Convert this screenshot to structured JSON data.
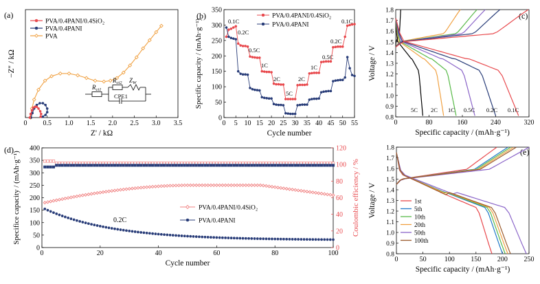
{
  "colors": {
    "red": "#e8484c",
    "navy": "#283c78",
    "orange": "#f0a040",
    "light_red": "#f08080",
    "green": "#57b947",
    "purple": "#8a64c8",
    "brown": "#9a5a2c",
    "teal": "#39a9a0",
    "blue": "#1f78c8",
    "black": "#000000"
  },
  "panel_labels": {
    "a": "(a)",
    "b": "(b)",
    "c": "(c)",
    "d": "(d)",
    "e": "(e)"
  },
  "chart_data": [
    {
      "id": "a",
      "type": "line",
      "xlabel": "Z' / kΩ",
      "ylabel": "−Z'' / kΩ",
      "xlim": [
        0,
        3.5
      ],
      "ylim": [
        0,
        1.2
      ],
      "xticks": [
        "0",
        "0.5",
        "1.0",
        "1.5",
        "2.0",
        "2.5",
        "3.0",
        "3.5"
      ],
      "legend": [
        "PVA/0.4PANI/0.4SiO₂",
        "PVA/0.4PANI",
        "PVA"
      ],
      "circuit": {
        "r1": "R",
        "r1_sub": "ct1",
        "r2": "R",
        "r2_sub": "ct2",
        "zw": "Z",
        "zw_sub": "W",
        "cpe": "CPE1"
      },
      "series": [
        {
          "name": "PVA",
          "x": [
            0.12,
            0.15,
            0.2,
            0.3,
            0.45,
            0.6,
            0.8,
            1.0,
            1.2,
            1.4,
            1.6,
            1.8,
            1.95,
            2.1,
            2.25,
            2.4,
            2.55,
            2.7,
            2.85,
            3.0,
            3.12
          ],
          "y": [
            0.0,
            0.1,
            0.2,
            0.31,
            0.41,
            0.46,
            0.49,
            0.49,
            0.47,
            0.44,
            0.41,
            0.4,
            0.41,
            0.44,
            0.5,
            0.58,
            0.67,
            0.77,
            0.86,
            0.95,
            1.02
          ]
        },
        {
          "name": "PVA/0.4PANI",
          "x": [
            0.13,
            0.16,
            0.2,
            0.26,
            0.33,
            0.4,
            0.46,
            0.5,
            0.5,
            0.46,
            0.4
          ],
          "y": [
            0.0,
            0.05,
            0.1,
            0.14,
            0.16,
            0.16,
            0.14,
            0.1,
            0.06,
            0.03,
            0.01
          ]
        },
        {
          "name": "PVA/0.4PANI/0.4SiO₂",
          "x": [
            0.1,
            0.12,
            0.15,
            0.18,
            0.22,
            0.26,
            0.3,
            0.34,
            0.36,
            0.35
          ],
          "y": [
            0.0,
            0.04,
            0.08,
            0.11,
            0.12,
            0.12,
            0.1,
            0.07,
            0.04,
            0.01
          ]
        }
      ]
    },
    {
      "id": "b",
      "type": "line",
      "xlabel": "Cycle number",
      "ylabel": "Specific capacity / (mAh·g⁻¹)",
      "xlim": [
        0,
        55
      ],
      "ylim": [
        0,
        350
      ],
      "xticks": [
        "0",
        "5",
        "10",
        "15",
        "20",
        "25",
        "30",
        "35",
        "40",
        "45",
        "50",
        "55"
      ],
      "yticks": [
        "0",
        "50",
        "100",
        "150",
        "200",
        "250",
        "300",
        "350"
      ],
      "legend": [
        "PVA/0.4PANI/0.4SiO₂",
        "PVA/0.4PANI"
      ],
      "rate_labels": [
        "0.1C",
        "0.2C",
        "0.5C",
        "1C",
        "2C",
        "5C",
        "2C",
        "1C",
        "0.5C",
        "0.2C",
        "0.1C"
      ],
      "series": [
        {
          "name": "PVA/0.4PANI/0.4SiO₂",
          "values": [
            262,
            285,
            288,
            292,
            296,
            240,
            234,
            232,
            232,
            230,
            198,
            196,
            195,
            194,
            194,
            150,
            149,
            148,
            148,
            147,
            110,
            108,
            108,
            107,
            107,
            60,
            60,
            60,
            60,
            60,
            105,
            106,
            106,
            106,
            107,
            143,
            144,
            145,
            145,
            145,
            180,
            181,
            182,
            182,
            182,
            228,
            229,
            230,
            230,
            230,
            262,
            298,
            300,
            302,
            303
          ]
        },
        {
          "name": "PVA/0.4PANI",
          "values": [
            292,
            262,
            258,
            256,
            254,
            150,
            142,
            140,
            140,
            139,
            96,
            92,
            90,
            89,
            88,
            66,
            64,
            63,
            62,
            62,
            44,
            42,
            41,
            41,
            40,
            14,
            13,
            12,
            12,
            12,
            40,
            41,
            42,
            42,
            42,
            58,
            60,
            61,
            61,
            62,
            82,
            84,
            85,
            86,
            86,
            118,
            120,
            121,
            122,
            122,
            130,
            196,
            160,
            138,
            135
          ]
        }
      ]
    },
    {
      "id": "c",
      "type": "line",
      "xlabel": "Specific capacity / (mAh·g⁻¹)",
      "ylabel": "Voltage / V",
      "xlim": [
        0,
        320
      ],
      "ylim": [
        0.8,
        1.8
      ],
      "xticks": [
        "0",
        "80",
        "160",
        "240",
        "320"
      ],
      "yticks": [
        "0.8",
        "0.9",
        "1.0",
        "1.1",
        "1.2",
        "1.3",
        "1.4",
        "1.5",
        "1.6",
        "1.7",
        "1.8"
      ],
      "curve_labels": [
        "5C",
        "2C",
        "1C",
        "0.5C",
        "0.2C",
        "0.1C"
      ],
      "series": [
        {
          "label": "5C",
          "color": "#000000",
          "cap": 65,
          "charge_end": 12
        },
        {
          "label": "2C",
          "color": "#f0a040",
          "cap": 115,
          "charge_end": 155
        },
        {
          "label": "1C",
          "color": "#57b947",
          "cap": 145,
          "charge_end": 195
        },
        {
          "label": "0.5C",
          "color": "#8a64c8",
          "cap": 190,
          "charge_end": 215
        },
        {
          "label": "0.2C",
          "color": "#283c78",
          "cap": 240,
          "charge_end": 250
        },
        {
          "label": "0.1C",
          "color": "#e8484c",
          "cap": 295,
          "charge_end": 318
        }
      ]
    },
    {
      "id": "d",
      "type": "line",
      "xlabel": "Cycle number",
      "ylabel": "Specifice capacity / (mAh·g⁻¹)",
      "y2label": "Coulombic efficiency / %",
      "xlim": [
        0,
        100
      ],
      "ylim": [
        0,
        400
      ],
      "y2lim": [
        0,
        120
      ],
      "xticks": [
        "0",
        "20",
        "40",
        "60",
        "80",
        "100"
      ],
      "yticks": [
        "0",
        "50",
        "100",
        "150",
        "200",
        "250",
        "300",
        "350",
        "400"
      ],
      "y2ticks": [
        "0",
        "20",
        "40",
        "60",
        "80",
        "100",
        "120"
      ],
      "legend": [
        "PVA/0.4PANI/0.4SiO₂",
        "PVA/0.4PANI"
      ],
      "rate": "0.2C",
      "series": [
        {
          "name": "PVA/0.4PANI/0.4SiO₂",
          "capacity_start": 180,
          "capacity_plateau": 250,
          "capacity_end": 210
        },
        {
          "name": "PVA/0.4PANI",
          "capacity_start": 155,
          "capacity_end": 30
        },
        {
          "name": "CE PVA/0.4PANI/0.4SiO₂",
          "ce": [
            104,
            103,
            102,
            101,
            100
          ]
        },
        {
          "name": "CE PVA/0.4PANI",
          "ce": [
            96,
            97,
            98,
            99,
            99
          ]
        }
      ]
    },
    {
      "id": "e",
      "type": "line",
      "xlabel": "Specific capacity / (mAh·g⁻¹)",
      "ylabel": "Voltage / V",
      "xlim": [
        0,
        250
      ],
      "ylim": [
        0.8,
        1.8
      ],
      "xticks": [
        "0",
        "50",
        "100",
        "150",
        "200",
        "250"
      ],
      "yticks": [
        "0.8",
        "0.9",
        "1.0",
        "1.1",
        "1.2",
        "1.3",
        "1.4",
        "1.5",
        "1.6",
        "1.7",
        "1.8"
      ],
      "legend": [
        "1st",
        "5th",
        "10th",
        "20th",
        "50th",
        "100th"
      ],
      "series": [
        {
          "name": "1st",
          "color": "#e8484c",
          "cap": 180
        },
        {
          "name": "5th",
          "color": "#1f78c8",
          "cap": 200
        },
        {
          "name": "10th",
          "color": "#57b947",
          "cap": 205
        },
        {
          "name": "20th",
          "color": "#f0a040",
          "cap": 210
        },
        {
          "name": "50th",
          "color": "#8a64c8",
          "cap": 245
        },
        {
          "name": "100th",
          "color": "#9a5a2c",
          "cap": 215
        }
      ]
    }
  ]
}
